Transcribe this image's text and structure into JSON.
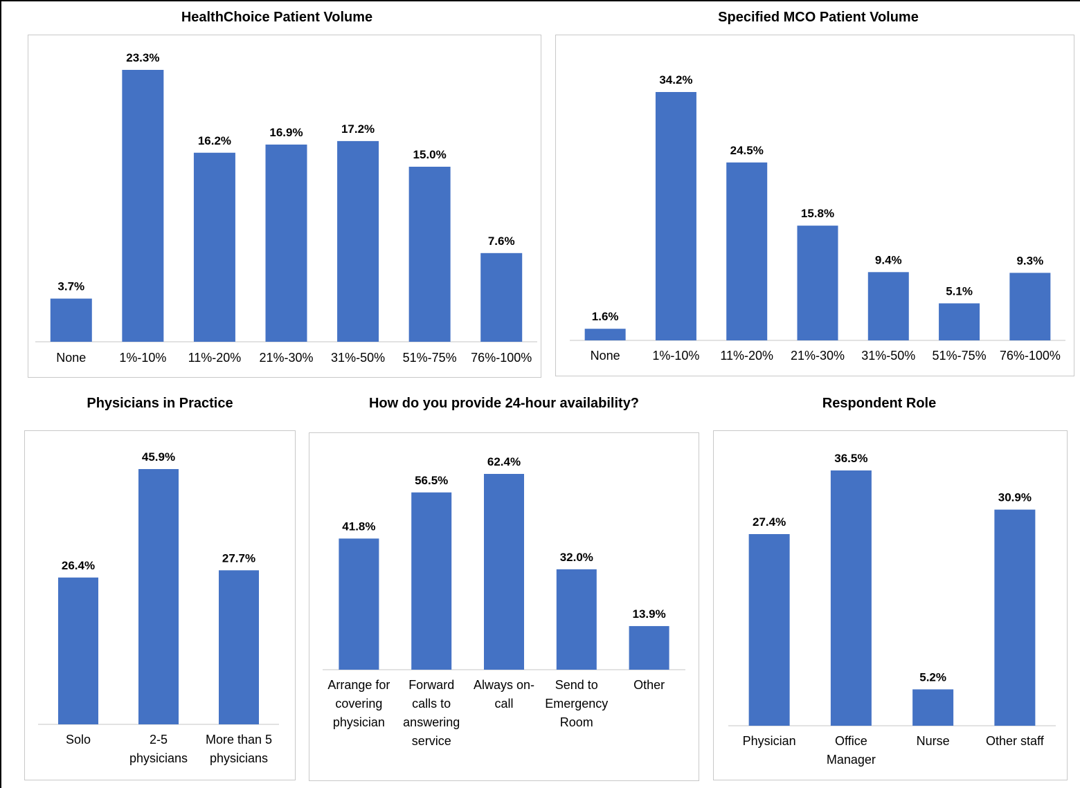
{
  "colors": {
    "bar": "#4472C4",
    "axis": "#d9d9d9",
    "text": "#000000"
  },
  "chart_data": [
    {
      "type": "bar",
      "title": "HealthChoice Patient Volume",
      "categories": [
        [
          "None"
        ],
        [
          "1%-10%"
        ],
        [
          "11%-20%"
        ],
        [
          "21%-30%"
        ],
        [
          "31%-50%"
        ],
        [
          "51%-75%"
        ],
        [
          "76%-100%"
        ]
      ],
      "values": [
        3.7,
        23.3,
        16.2,
        16.9,
        17.2,
        15.0,
        7.6
      ],
      "value_labels": [
        "3.7%",
        "23.3%",
        "16.2%",
        "16.9%",
        "17.2%",
        "15.0%",
        "7.6%"
      ],
      "ylim": [
        0,
        23.3
      ]
    },
    {
      "type": "bar",
      "title": "Specified MCO Patient Volume",
      "categories": [
        [
          "None"
        ],
        [
          "1%-10%"
        ],
        [
          "11%-20%"
        ],
        [
          "21%-30%"
        ],
        [
          "31%-50%"
        ],
        [
          "51%-75%"
        ],
        [
          "76%-100%"
        ]
      ],
      "values": [
        1.6,
        34.2,
        24.5,
        15.8,
        9.4,
        5.1,
        9.3
      ],
      "value_labels": [
        "1.6%",
        "34.2%",
        "24.5%",
        "15.8%",
        "9.4%",
        "5.1%",
        "9.3%"
      ],
      "ylim": [
        0,
        34.2
      ]
    },
    {
      "type": "bar",
      "title": "Physicians in Practice",
      "categories": [
        [
          "Solo"
        ],
        [
          "2-5",
          "physicians"
        ],
        [
          "More than 5",
          "physicians"
        ]
      ],
      "values": [
        26.4,
        45.9,
        27.7
      ],
      "value_labels": [
        "26.4%",
        "45.9%",
        "27.7%"
      ],
      "ylim": [
        0,
        45.9
      ]
    },
    {
      "type": "bar",
      "title": "How do you provide 24-hour availability?",
      "categories": [
        [
          "Arrange for",
          "covering",
          "physician"
        ],
        [
          "Forward",
          "calls to",
          "answering",
          "service"
        ],
        [
          "Always on-",
          "call"
        ],
        [
          "Send to",
          "Emergency",
          "Room"
        ],
        [
          "Other"
        ]
      ],
      "values": [
        41.8,
        56.5,
        62.4,
        32.0,
        13.9
      ],
      "value_labels": [
        "41.8%",
        "56.5%",
        "62.4%",
        "32.0%",
        "13.9%"
      ],
      "ylim": [
        0,
        62.4
      ]
    },
    {
      "type": "bar",
      "title": "Respondent Role",
      "categories": [
        [
          "Physician"
        ],
        [
          "Office",
          "Manager"
        ],
        [
          "Nurse"
        ],
        [
          "Other staff"
        ]
      ],
      "values": [
        27.4,
        36.5,
        5.2,
        30.9
      ],
      "value_labels": [
        "27.4%",
        "36.5%",
        "5.2%",
        "30.9%"
      ],
      "ylim": [
        0,
        36.5
      ]
    }
  ]
}
